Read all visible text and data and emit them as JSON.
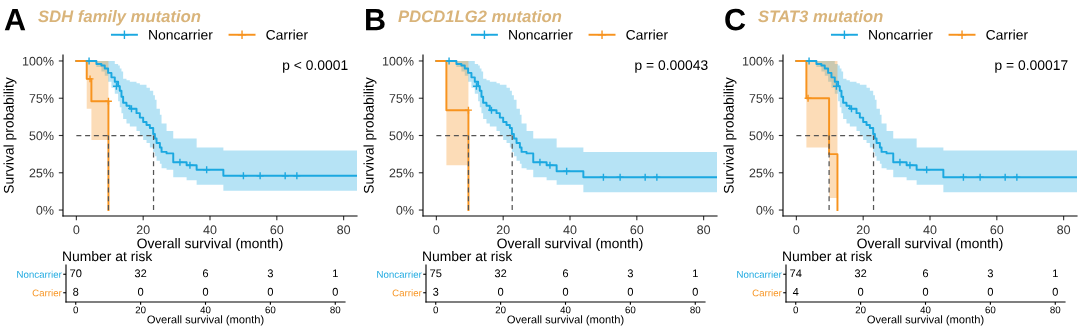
{
  "chart_data": [
    {
      "type": "step",
      "title": "SDH family mutation",
      "annotations": [
        "A",
        "p < 0.0001"
      ],
      "xlabel": "Overall survival (month)",
      "ylabel": "Survival probability",
      "xlim": [
        -4,
        84
      ],
      "ylim": [
        -4,
        104
      ],
      "xticks": [
        0,
        20,
        40,
        60,
        80
      ],
      "yticks": [
        {
          "value": 0,
          "label": "0%"
        },
        {
          "value": 25,
          "label": "25%"
        },
        {
          "value": 50,
          "label": "50%"
        },
        {
          "value": 75,
          "label": "75%"
        },
        {
          "value": 100,
          "label": "100%"
        }
      ],
      "legend": "top",
      "grid": false,
      "series": [
        {
          "name": "Noncarrier",
          "type": "step",
          "color": "#1ba8e0",
          "x": [
            0,
            3.8,
            6,
            7.5,
            8.5,
            9.5,
            10.5,
            11.5,
            12.5,
            13,
            13.5,
            14,
            15,
            16,
            18,
            19,
            20,
            21,
            22,
            23,
            23.5,
            24,
            25,
            25.5,
            27,
            29,
            33,
            36,
            44,
            84
          ],
          "values": [
            100,
            100,
            98,
            97,
            95,
            92,
            89,
            86,
            83,
            80,
            76,
            72,
            70,
            68,
            65,
            62,
            59,
            57,
            55,
            51,
            48,
            45,
            42,
            39,
            38,
            32,
            30,
            27,
            23,
            23
          ],
          "upper": [
            100,
            100,
            100,
            100,
            100,
            100,
            100,
            98,
            97,
            95,
            93,
            88,
            87,
            86,
            85,
            84,
            84,
            82,
            80,
            77,
            74,
            68,
            64,
            58,
            53,
            48,
            48,
            42,
            40,
            40
          ],
          "lower": [
            100,
            100,
            96,
            93,
            90,
            86,
            82,
            78,
            73,
            69,
            65,
            61,
            58,
            56,
            53,
            50,
            47,
            45,
            42,
            39,
            36,
            33,
            31,
            28,
            27,
            22,
            20,
            17,
            13,
            13
          ]
        },
        {
          "name": "Carrier",
          "type": "step",
          "color": "#f7931e",
          "x": [
            0,
            3.1,
            4.5,
            9.6
          ],
          "values": [
            100,
            88,
            73,
            0
          ],
          "upper": [
            100,
            100,
            100,
            0
          ],
          "lower": [
            100,
            68,
            47,
            0
          ]
        },
        {
          "type": "scatter",
          "marker": "cross",
          "color": "#1ba8e0",
          "x": [
            3.8,
            12,
            16.5,
            31,
            34,
            39,
            50,
            55,
            62.5,
            66
          ],
          "values": [
            100,
            83,
            68,
            32,
            30,
            27,
            23,
            23,
            23,
            23
          ]
        },
        {
          "type": "scatter",
          "marker": "cross",
          "color": "#f7931e",
          "x": [
            4.1,
            9.6
          ],
          "values": [
            88,
            73
          ]
        }
      ],
      "ref_lines": [
        {
          "axis": "y",
          "value": 50,
          "line_style": "dashed",
          "color": "#555555"
        },
        {
          "axis": "x",
          "value": 9.6,
          "line_style": "dashed",
          "color": "#555555"
        },
        {
          "axis": "x",
          "value": 23.1,
          "line_style": "dashed",
          "color": "#555555"
        }
      ]
    },
    {
      "type": "heatmap",
      "title": "Number at risk",
      "xlabel": "Overall survival (month)",
      "categories": [
        "0",
        "20",
        "40",
        "60",
        "80"
      ],
      "y_categories": [
        "Noncarrier",
        "Carrier"
      ],
      "colors": [
        "#1ba8e0",
        "#f7931e"
      ],
      "cells": [
        [
          70,
          32,
          6,
          3,
          1
        ],
        [
          8,
          0,
          0,
          0,
          0
        ]
      ],
      "data_labels": true
    },
    {
      "type": "step",
      "title": "PDCD1LG2 mutation",
      "annotations": [
        "B",
        "p = 0.00043"
      ],
      "xlabel": "Overall survival (month)",
      "ylabel": "Survival probability",
      "xlim": [
        -4,
        84
      ],
      "ylim": [
        -4,
        104
      ],
      "xticks": [
        0,
        20,
        40,
        60,
        80
      ],
      "yticks": [
        {
          "value": 0,
          "label": "0%"
        },
        {
          "value": 25,
          "label": "25%"
        },
        {
          "value": 50,
          "label": "50%"
        },
        {
          "value": 75,
          "label": "75%"
        },
        {
          "value": 100,
          "label": "100%"
        }
      ],
      "legend": "top",
      "grid": false,
      "series": [
        {
          "name": "Noncarrier",
          "type": "step",
          "color": "#1ba8e0",
          "x": [
            0,
            3.8,
            6,
            7.5,
            8.5,
            9.5,
            10.5,
            11.5,
            12.5,
            13,
            13.5,
            14,
            15,
            16,
            18,
            19,
            20,
            21,
            22,
            22.6,
            23.2,
            24,
            25,
            25.5,
            27,
            29,
            33,
            36,
            44,
            84
          ],
          "values": [
            100,
            100,
            98,
            97,
            95,
            92,
            89,
            86,
            83,
            80,
            76,
            72,
            70,
            67,
            65,
            62,
            59,
            57,
            55,
            51,
            48,
            45,
            42,
            39,
            38,
            32,
            30,
            26,
            22,
            22
          ],
          "upper": [
            100,
            100,
            100,
            100,
            100,
            100,
            100,
            98,
            97,
            95,
            93,
            88,
            87,
            86,
            85,
            84,
            84,
            82,
            80,
            77,
            74,
            68,
            64,
            58,
            53,
            48,
            48,
            42,
            39,
            39
          ],
          "lower": [
            100,
            100,
            96,
            93,
            90,
            86,
            82,
            78,
            73,
            69,
            65,
            61,
            58,
            56,
            53,
            50,
            47,
            45,
            42,
            39,
            36,
            33,
            31,
            28,
            27,
            22,
            20,
            17,
            12,
            12
          ]
        },
        {
          "name": "Carrier",
          "type": "step",
          "color": "#f7931e",
          "x": [
            0,
            3,
            9.6
          ],
          "values": [
            100,
            67,
            0
          ],
          "upper": [
            100,
            100,
            0
          ],
          "lower": [
            100,
            30,
            0
          ]
        },
        {
          "type": "scatter",
          "marker": "cross",
          "color": "#1ba8e0",
          "x": [
            3.8,
            12,
            16.5,
            31,
            34,
            39,
            50,
            55,
            62.5,
            66
          ],
          "values": [
            100,
            83,
            67,
            32,
            30,
            26,
            22,
            22,
            22,
            22
          ]
        },
        {
          "type": "scatter",
          "marker": "cross",
          "color": "#f7931e",
          "x": [
            9.6
          ],
          "values": [
            67
          ]
        }
      ],
      "ref_lines": [
        {
          "axis": "y",
          "value": 50,
          "line_style": "dashed",
          "color": "#555555"
        },
        {
          "axis": "x",
          "value": 9.6,
          "line_style": "dashed",
          "color": "#555555"
        },
        {
          "axis": "x",
          "value": 22.7,
          "line_style": "dashed",
          "color": "#555555"
        }
      ]
    },
    {
      "type": "heatmap",
      "title": "Number at risk",
      "xlabel": "Overall survival (month)",
      "categories": [
        "0",
        "20",
        "40",
        "60",
        "80"
      ],
      "y_categories": [
        "Noncarrier",
        "Carrier"
      ],
      "colors": [
        "#1ba8e0",
        "#f7931e"
      ],
      "cells": [
        [
          75,
          32,
          6,
          3,
          1
        ],
        [
          3,
          0,
          0,
          0,
          0
        ]
      ],
      "data_labels": true
    },
    {
      "type": "step",
      "title": "STAT3 mutation",
      "annotations": [
        "C",
        "p = 0.00017"
      ],
      "xlabel": "Overall survival (month)",
      "ylabel": "Survival probability",
      "xlim": [
        -4,
        84
      ],
      "ylim": [
        -4,
        104
      ],
      "xticks": [
        0,
        20,
        40,
        60,
        80
      ],
      "yticks": [
        {
          "value": 0,
          "label": "0%"
        },
        {
          "value": 25,
          "label": "25%"
        },
        {
          "value": 50,
          "label": "50%"
        },
        {
          "value": 75,
          "label": "75%"
        },
        {
          "value": 100,
          "label": "100%"
        }
      ],
      "legend": "top",
      "grid": false,
      "series": [
        {
          "name": "Noncarrier",
          "type": "step",
          "color": "#1ba8e0",
          "x": [
            0,
            3.8,
            6,
            7.5,
            8.5,
            9.5,
            10.5,
            11.5,
            12.5,
            13,
            13.5,
            14,
            15,
            16,
            18,
            19,
            20,
            21,
            22,
            23,
            23.5,
            24,
            25,
            25.5,
            27,
            29,
            33,
            36,
            44,
            84
          ],
          "values": [
            100,
            100,
            98,
            97,
            95,
            92,
            89,
            86,
            83,
            80,
            76,
            72,
            70,
            68,
            65,
            62,
            59,
            57,
            55,
            51,
            48,
            45,
            42,
            39,
            38,
            32,
            30,
            27,
            22,
            22
          ],
          "upper": [
            100,
            100,
            100,
            100,
            100,
            100,
            100,
            98,
            97,
            95,
            93,
            88,
            87,
            86,
            85,
            84,
            84,
            82,
            80,
            77,
            74,
            68,
            64,
            58,
            53,
            48,
            48,
            42,
            40,
            40
          ],
          "lower": [
            100,
            100,
            96,
            93,
            90,
            86,
            82,
            78,
            73,
            69,
            65,
            61,
            58,
            56,
            53,
            50,
            47,
            45,
            42,
            39,
            36,
            33,
            31,
            28,
            27,
            22,
            20,
            17,
            12,
            12
          ]
        },
        {
          "name": "Carrier",
          "type": "step",
          "color": "#f7931e",
          "x": [
            0,
            3,
            9.8,
            12.3
          ],
          "values": [
            100,
            75,
            37.5,
            0
          ],
          "upper": [
            100,
            100,
            100,
            0
          ],
          "lower": [
            100,
            42,
            8,
            0
          ]
        },
        {
          "type": "scatter",
          "marker": "cross",
          "color": "#1ba8e0",
          "x": [
            3.8,
            12,
            16.5,
            31,
            34,
            39,
            50,
            55,
            62.5,
            66
          ],
          "values": [
            100,
            83,
            68,
            32,
            30,
            27,
            22,
            22,
            22,
            22
          ]
        },
        {
          "type": "scatter",
          "marker": "cross",
          "color": "#f7931e",
          "x": [
            3.5
          ],
          "values": [
            75
          ]
        }
      ],
      "ref_lines": [
        {
          "axis": "y",
          "value": 50,
          "line_style": "dashed",
          "color": "#555555"
        },
        {
          "axis": "x",
          "value": 9.8,
          "line_style": "dashed",
          "color": "#555555"
        },
        {
          "axis": "x",
          "value": 23.1,
          "line_style": "dashed",
          "color": "#555555"
        }
      ]
    },
    {
      "type": "heatmap",
      "title": "Number at risk",
      "xlabel": "Overall survival (month)",
      "categories": [
        "0",
        "20",
        "40",
        "60",
        "80"
      ],
      "y_categories": [
        "Noncarrier",
        "Carrier"
      ],
      "colors": [
        "#1ba8e0",
        "#f7931e"
      ],
      "cells": [
        [
          74,
          32,
          6,
          3,
          1
        ],
        [
          4,
          0,
          0,
          0,
          0
        ]
      ],
      "data_labels": true
    }
  ]
}
